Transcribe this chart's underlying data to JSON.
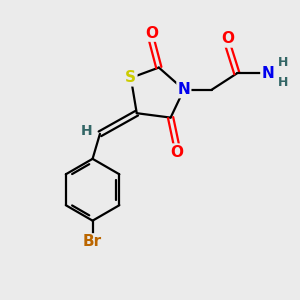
{
  "bg_color": "#ebebeb",
  "atom_colors": {
    "S": "#cccc00",
    "N": "#0000ee",
    "O": "#ff0000",
    "Br": "#bb6600",
    "C": "#000000",
    "H": "#336666"
  },
  "font_size": 11,
  "lw": 1.6
}
